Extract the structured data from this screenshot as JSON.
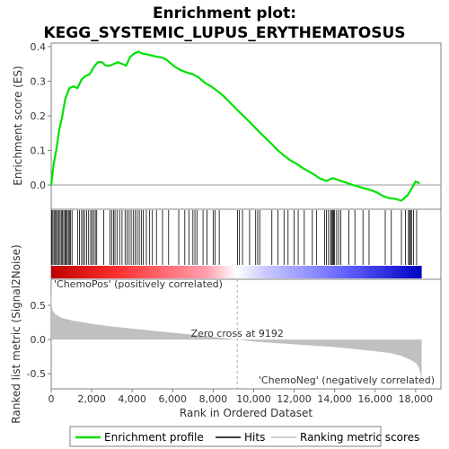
{
  "chart_data": {
    "type": "line",
    "title_line1": "Enrichment plot:",
    "title_line2": "KEGG_SYSTEMIC_LUPUS_ERYTHEMATOSUS",
    "top_panel": {
      "ylabel": "Enrichment score (ES)",
      "ylim": [
        -0.07,
        0.41
      ],
      "yticks": [
        "0.0",
        "0.1",
        "0.2",
        "0.3",
        "0.4"
      ],
      "ytick_values": [
        0.0,
        0.1,
        0.2,
        0.3,
        0.4
      ],
      "series": [
        {
          "name": "Enrichment profile",
          "color": "#00e000",
          "x": [
            0,
            120,
            250,
            400,
            550,
            700,
            900,
            1100,
            1300,
            1500,
            1700,
            1900,
            2100,
            2300,
            2500,
            2700,
            2900,
            3100,
            3300,
            3500,
            3700,
            3900,
            4100,
            4300,
            4500,
            4700,
            4900,
            5100,
            5300,
            5500,
            5700,
            5900,
            6100,
            6400,
            6700,
            7000,
            7300,
            7600,
            7900,
            8200,
            8500,
            8800,
            9100,
            9400,
            9700,
            10000,
            10300,
            10600,
            10900,
            11200,
            11500,
            11800,
            12100,
            12400,
            12700,
            13000,
            13300,
            13600,
            13900,
            14100,
            14300,
            14600,
            14900,
            15200,
            15500,
            15800,
            16100,
            16400,
            16700,
            17000,
            17300,
            17600,
            17800,
            18000,
            18200
          ],
          "values": [
            0.0,
            0.06,
            0.1,
            0.16,
            0.2,
            0.25,
            0.28,
            0.285,
            0.28,
            0.305,
            0.315,
            0.32,
            0.34,
            0.355,
            0.355,
            0.345,
            0.345,
            0.35,
            0.355,
            0.35,
            0.345,
            0.37,
            0.38,
            0.385,
            0.38,
            0.378,
            0.375,
            0.372,
            0.37,
            0.368,
            0.362,
            0.352,
            0.342,
            0.332,
            0.325,
            0.32,
            0.31,
            0.295,
            0.285,
            0.272,
            0.258,
            0.24,
            0.222,
            0.205,
            0.188,
            0.17,
            0.152,
            0.135,
            0.118,
            0.1,
            0.085,
            0.072,
            0.062,
            0.05,
            0.04,
            0.03,
            0.018,
            0.012,
            0.02,
            0.016,
            0.012,
            0.006,
            0.0,
            -0.005,
            -0.01,
            -0.015,
            -0.022,
            -0.032,
            -0.038,
            -0.04,
            -0.045,
            -0.03,
            -0.01,
            0.01,
            0.005
          ]
        }
      ]
    },
    "hits": [
      30,
      80,
      140,
      190,
      260,
      310,
      380,
      440,
      500,
      560,
      620,
      680,
      730,
      790,
      850,
      900,
      960,
      1030,
      1300,
      1400,
      1500,
      1580,
      1650,
      1750,
      1850,
      1950,
      2020,
      2100,
      2180,
      2250,
      2600,
      2900,
      3000,
      3080,
      3150,
      3250,
      3380,
      3500,
      3650,
      3750,
      3850,
      3950,
      4050,
      4150,
      4250,
      4350,
      4450,
      4550,
      4700,
      4850,
      5000,
      5200,
      5500,
      5800,
      6300,
      6600,
      6800,
      7000,
      7100,
      7200,
      7500,
      7700,
      8000,
      8100,
      8300,
      9200,
      9300,
      9450,
      9800,
      10100,
      10200,
      10300,
      10900,
      11200,
      11500,
      11700,
      12000,
      12200,
      12500,
      12900,
      13100,
      13500,
      13600,
      13700,
      13800,
      13850,
      13900,
      13950,
      14000,
      14100,
      14200,
      14300,
      14700,
      15000,
      15400,
      15700,
      16500,
      16800,
      17300,
      17500,
      17650,
      17700,
      17750,
      17800,
      17900,
      18050
    ],
    "x_axis": {
      "label": "Rank in Ordered Dataset",
      "ticks": [
        "0",
        "2,000",
        "4,000",
        "6,000",
        "8,000",
        "10,000",
        "12,000",
        "14,000",
        "16,000",
        "18,000"
      ],
      "tick_values": [
        0,
        2000,
        4000,
        6000,
        8000,
        10000,
        12000,
        14000,
        16000,
        18000
      ],
      "xlim": [
        0,
        19250
      ],
      "n_genes": 18300
    },
    "bottom_panel": {
      "ylabel": "Ranked list metric (Signal2Noise)",
      "ylim": [
        -0.72,
        0.88
      ],
      "yticks": [
        "0.5",
        "0.0",
        "-0.5"
      ],
      "ytick_values": [
        0.5,
        0.0,
        -0.5
      ],
      "zero_cross_rank": 9192,
      "zero_cross_label": "Zero cross at 9192",
      "pos_label": "'ChemoPos' (positively correlated)",
      "neg_label": "'ChemoNeg' (negatively correlated)",
      "metric_x": [
        0,
        20,
        80,
        200,
        500,
        1000,
        2000,
        3000,
        4000,
        5000,
        6000,
        7000,
        8000,
        9192,
        10000,
        11000,
        12000,
        13000,
        14000,
        15000,
        16000,
        16800,
        17300,
        17700,
        18000,
        18150,
        18250,
        18300
      ],
      "metric_values": [
        0.85,
        0.5,
        0.42,
        0.37,
        0.32,
        0.28,
        0.23,
        0.19,
        0.16,
        0.13,
        0.1,
        0.07,
        0.04,
        0.0,
        -0.03,
        -0.05,
        -0.07,
        -0.09,
        -0.11,
        -0.14,
        -0.17,
        -0.2,
        -0.24,
        -0.29,
        -0.34,
        -0.4,
        -0.5,
        -0.66
      ]
    },
    "legend": {
      "placement": "bottom",
      "items": [
        {
          "label": "Enrichment profile",
          "color": "#00e000"
        },
        {
          "label": "Hits",
          "color": "#000000"
        },
        {
          "label": "Ranking metric scores",
          "color": "#c0c0c0"
        }
      ]
    },
    "colors": {
      "pos_text": "#cc0000",
      "neg_text": "#0000cc",
      "metric_fill": "#c0c0c0",
      "zero_line": "#aaaaaa"
    }
  }
}
